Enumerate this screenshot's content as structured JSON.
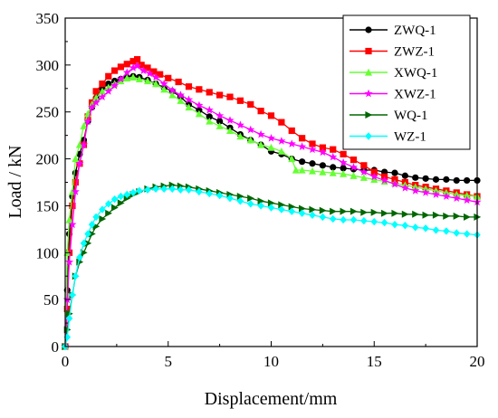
{
  "chart_data": {
    "type": "line",
    "title": "",
    "xlabel": "Displacement/mm",
    "ylabel": "Load / kN",
    "xlim": [
      0,
      20
    ],
    "ylim": [
      0,
      350
    ],
    "xticks": [
      0,
      5,
      10,
      15,
      20
    ],
    "yticks": [
      0,
      50,
      100,
      150,
      200,
      250,
      300,
      350
    ],
    "grid": false,
    "legend_position": "top-right",
    "series": [
      {
        "name": "ZWQ-1",
        "color": "#000000",
        "marker": "circle",
        "points": [
          [
            0,
            0
          ],
          [
            0.1,
            60
          ],
          [
            0.2,
            120
          ],
          [
            0.35,
            160
          ],
          [
            0.5,
            185
          ],
          [
            0.7,
            205
          ],
          [
            0.9,
            220
          ],
          [
            1.1,
            240
          ],
          [
            1.3,
            255
          ],
          [
            1.5,
            265
          ],
          [
            1.8,
            275
          ],
          [
            2.1,
            280
          ],
          [
            2.4,
            283
          ],
          [
            2.7,
            285
          ],
          [
            3.0,
            287
          ],
          [
            3.3,
            288
          ],
          [
            3.6,
            287
          ],
          [
            4.0,
            284
          ],
          [
            4.4,
            280
          ],
          [
            4.8,
            276
          ],
          [
            5.2,
            272
          ],
          [
            5.6,
            266
          ],
          [
            6.0,
            258
          ],
          [
            6.5,
            252
          ],
          [
            7.0,
            245
          ],
          [
            7.5,
            240
          ],
          [
            8.0,
            233
          ],
          [
            8.5,
            226
          ],
          [
            9.0,
            220
          ],
          [
            9.5,
            215
          ],
          [
            10.0,
            208
          ],
          [
            10.5,
            205
          ],
          [
            11.0,
            200
          ],
          [
            11.5,
            197
          ],
          [
            12.0,
            195
          ],
          [
            12.5,
            193
          ],
          [
            13.0,
            191
          ],
          [
            13.5,
            190
          ],
          [
            14.0,
            189
          ],
          [
            14.5,
            188
          ],
          [
            15.0,
            188
          ],
          [
            15.5,
            186
          ],
          [
            16.0,
            185
          ],
          [
            16.5,
            182
          ],
          [
            17.0,
            180
          ],
          [
            17.5,
            179
          ],
          [
            18.0,
            178
          ],
          [
            18.5,
            178
          ],
          [
            19.0,
            177
          ],
          [
            19.5,
            177
          ],
          [
            20.0,
            177
          ]
        ]
      },
      {
        "name": "ZWZ-1",
        "color": "#ff0000",
        "marker": "square",
        "points": [
          [
            0,
            0
          ],
          [
            0.1,
            40
          ],
          [
            0.2,
            100
          ],
          [
            0.35,
            150
          ],
          [
            0.5,
            175
          ],
          [
            0.7,
            195
          ],
          [
            0.9,
            215
          ],
          [
            1.1,
            245
          ],
          [
            1.3,
            260
          ],
          [
            1.5,
            272
          ],
          [
            1.8,
            280
          ],
          [
            2.1,
            288
          ],
          [
            2.4,
            294
          ],
          [
            2.7,
            298
          ],
          [
            3.0,
            301
          ],
          [
            3.3,
            304
          ],
          [
            3.5,
            306
          ],
          [
            3.7,
            300
          ],
          [
            4.0,
            297
          ],
          [
            4.3,
            293
          ],
          [
            4.6,
            290
          ],
          [
            5.0,
            286
          ],
          [
            5.5,
            282
          ],
          [
            6.0,
            277
          ],
          [
            6.5,
            274
          ],
          [
            7.0,
            271
          ],
          [
            7.5,
            268
          ],
          [
            8.0,
            266
          ],
          [
            8.5,
            262
          ],
          [
            9.0,
            258
          ],
          [
            9.5,
            251
          ],
          [
            10.0,
            246
          ],
          [
            10.5,
            239
          ],
          [
            11.0,
            230
          ],
          [
            11.5,
            222
          ],
          [
            12.0,
            216
          ],
          [
            12.5,
            212
          ],
          [
            13.0,
            210
          ],
          [
            13.5,
            205
          ],
          [
            14.0,
            199
          ],
          [
            14.5,
            193
          ],
          [
            15.0,
            186
          ],
          [
            15.5,
            181
          ],
          [
            16.0,
            178
          ],
          [
            16.5,
            175
          ],
          [
            17.0,
            172
          ],
          [
            17.5,
            170
          ],
          [
            18.0,
            168
          ],
          [
            18.5,
            166
          ],
          [
            19.0,
            164
          ],
          [
            19.5,
            162
          ],
          [
            20.0,
            160
          ]
        ]
      },
      {
        "name": "XWQ-1",
        "color": "#66ff33",
        "marker": "triangle-up",
        "points": [
          [
            0,
            0
          ],
          [
            0.1,
            100
          ],
          [
            0.2,
            135
          ],
          [
            0.35,
            165
          ],
          [
            0.5,
            200
          ],
          [
            0.7,
            215
          ],
          [
            0.9,
            235
          ],
          [
            1.1,
            248
          ],
          [
            1.3,
            258
          ],
          [
            1.5,
            265
          ],
          [
            1.8,
            272
          ],
          [
            2.1,
            276
          ],
          [
            2.4,
            280
          ],
          [
            2.7,
            283
          ],
          [
            3.0,
            286
          ],
          [
            3.3,
            287
          ],
          [
            3.6,
            285
          ],
          [
            4.0,
            283
          ],
          [
            4.4,
            280
          ],
          [
            4.8,
            274
          ],
          [
            5.2,
            268
          ],
          [
            5.6,
            262
          ],
          [
            6.0,
            255
          ],
          [
            6.5,
            248
          ],
          [
            7.0,
            240
          ],
          [
            7.5,
            235
          ],
          [
            8.0,
            230
          ],
          [
            8.5,
            224
          ],
          [
            9.0,
            220
          ],
          [
            9.5,
            215
          ],
          [
            10.0,
            212
          ],
          [
            10.5,
            208
          ],
          [
            11.0,
            200
          ],
          [
            11.2,
            188
          ],
          [
            11.5,
            188
          ],
          [
            12.0,
            187
          ],
          [
            12.5,
            186
          ],
          [
            13.0,
            185
          ],
          [
            13.5,
            184
          ],
          [
            14.0,
            182
          ],
          [
            14.5,
            180
          ],
          [
            15.0,
            178
          ],
          [
            15.5,
            176
          ],
          [
            16.0,
            174
          ],
          [
            16.5,
            172
          ],
          [
            17.0,
            170
          ],
          [
            17.5,
            168
          ],
          [
            18.0,
            166
          ],
          [
            18.5,
            164
          ],
          [
            19.0,
            162
          ],
          [
            19.5,
            161
          ],
          [
            20.0,
            160
          ]
        ]
      },
      {
        "name": "XWZ-1",
        "color": "#ff00ff",
        "marker": "star",
        "points": [
          [
            0,
            0
          ],
          [
            0.1,
            50
          ],
          [
            0.2,
            90
          ],
          [
            0.35,
            130
          ],
          [
            0.5,
            165
          ],
          [
            0.7,
            195
          ],
          [
            0.9,
            215
          ],
          [
            1.1,
            240
          ],
          [
            1.3,
            255
          ],
          [
            1.5,
            260
          ],
          [
            1.8,
            266
          ],
          [
            2.1,
            272
          ],
          [
            2.4,
            278
          ],
          [
            2.7,
            285
          ],
          [
            3.0,
            292
          ],
          [
            3.3,
            297
          ],
          [
            3.5,
            299
          ],
          [
            3.8,
            294
          ],
          [
            4.1,
            291
          ],
          [
            4.4,
            287
          ],
          [
            4.8,
            280
          ],
          [
            5.2,
            273
          ],
          [
            5.6,
            268
          ],
          [
            6.0,
            263
          ],
          [
            6.5,
            257
          ],
          [
            7.0,
            252
          ],
          [
            7.5,
            246
          ],
          [
            8.0,
            241
          ],
          [
            8.5,
            236
          ],
          [
            9.0,
            231
          ],
          [
            9.5,
            226
          ],
          [
            10.0,
            222
          ],
          [
            10.5,
            219
          ],
          [
            11.0,
            216
          ],
          [
            11.5,
            213
          ],
          [
            12.0,
            210
          ],
          [
            12.5,
            207
          ],
          [
            13.0,
            202
          ],
          [
            13.5,
            196
          ],
          [
            14.0,
            191
          ],
          [
            14.5,
            186
          ],
          [
            15.0,
            181
          ],
          [
            15.5,
            177
          ],
          [
            16.0,
            173
          ],
          [
            16.5,
            169
          ],
          [
            17.0,
            166
          ],
          [
            17.5,
            164
          ],
          [
            18.0,
            162
          ],
          [
            18.5,
            160
          ],
          [
            19.0,
            158
          ],
          [
            19.5,
            156
          ],
          [
            20.0,
            154
          ]
        ]
      },
      {
        "name": "WQ-1",
        "color": "#006600",
        "marker": "triangle-right",
        "points": [
          [
            0,
            0
          ],
          [
            0.1,
            18
          ],
          [
            0.2,
            35
          ],
          [
            0.35,
            55
          ],
          [
            0.5,
            75
          ],
          [
            0.7,
            90
          ],
          [
            0.9,
            100
          ],
          [
            1.1,
            110
          ],
          [
            1.3,
            120
          ],
          [
            1.5,
            128
          ],
          [
            1.8,
            136
          ],
          [
            2.1,
            142
          ],
          [
            2.4,
            148
          ],
          [
            2.7,
            153
          ],
          [
            3.0,
            158
          ],
          [
            3.3,
            162
          ],
          [
            3.6,
            165
          ],
          [
            4.0,
            168
          ],
          [
            4.4,
            170
          ],
          [
            4.8,
            171
          ],
          [
            5.2,
            172
          ],
          [
            5.6,
            171
          ],
          [
            6.0,
            170
          ],
          [
            6.5,
            168
          ],
          [
            7.0,
            166
          ],
          [
            7.5,
            164
          ],
          [
            8.0,
            162
          ],
          [
            8.5,
            160
          ],
          [
            9.0,
            158
          ],
          [
            9.5,
            155
          ],
          [
            10.0,
            153
          ],
          [
            10.5,
            151
          ],
          [
            11.0,
            149
          ],
          [
            11.5,
            147
          ],
          [
            12.0,
            146
          ],
          [
            12.5,
            145
          ],
          [
            13.0,
            144
          ],
          [
            13.5,
            144
          ],
          [
            14.0,
            144
          ],
          [
            14.5,
            143
          ],
          [
            15.0,
            143
          ],
          [
            15.5,
            142
          ],
          [
            16.0,
            142
          ],
          [
            16.5,
            141
          ],
          [
            17.0,
            141
          ],
          [
            17.5,
            140
          ],
          [
            18.0,
            140
          ],
          [
            18.5,
            139
          ],
          [
            19.0,
            139
          ],
          [
            19.5,
            138
          ],
          [
            20.0,
            138
          ]
        ]
      },
      {
        "name": "WZ-1",
        "color": "#00ffff",
        "marker": "diamond",
        "points": [
          [
            0,
            0
          ],
          [
            0.1,
            10
          ],
          [
            0.2,
            30
          ],
          [
            0.35,
            55
          ],
          [
            0.5,
            75
          ],
          [
            0.7,
            95
          ],
          [
            0.9,
            110
          ],
          [
            1.1,
            120
          ],
          [
            1.3,
            130
          ],
          [
            1.5,
            138
          ],
          [
            1.8,
            146
          ],
          [
            2.1,
            152
          ],
          [
            2.4,
            157
          ],
          [
            2.7,
            160
          ],
          [
            3.0,
            162
          ],
          [
            3.3,
            164
          ],
          [
            3.6,
            166
          ],
          [
            4.0,
            167
          ],
          [
            4.4,
            168
          ],
          [
            4.8,
            168
          ],
          [
            5.2,
            168
          ],
          [
            5.6,
            167
          ],
          [
            6.0,
            167
          ],
          [
            6.5,
            165
          ],
          [
            7.0,
            163
          ],
          [
            7.5,
            161
          ],
          [
            8.0,
            158
          ],
          [
            8.5,
            155
          ],
          [
            9.0,
            152
          ],
          [
            9.5,
            150
          ],
          [
            10.0,
            148
          ],
          [
            10.5,
            146
          ],
          [
            11.0,
            144
          ],
          [
            11.5,
            142
          ],
          [
            12.0,
            140
          ],
          [
            12.5,
            138
          ],
          [
            13.0,
            136
          ],
          [
            13.5,
            135
          ],
          [
            14.0,
            135
          ],
          [
            14.5,
            134
          ],
          [
            15.0,
            133
          ],
          [
            15.5,
            132
          ],
          [
            16.0,
            130
          ],
          [
            16.5,
            129
          ],
          [
            17.0,
            127
          ],
          [
            17.5,
            126
          ],
          [
            18.0,
            124
          ],
          [
            18.5,
            123
          ],
          [
            19.0,
            121
          ],
          [
            19.5,
            120
          ],
          [
            20.0,
            119
          ]
        ]
      }
    ]
  }
}
